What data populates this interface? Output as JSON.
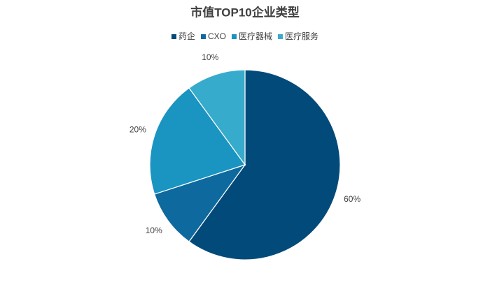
{
  "chart_data": {
    "type": "pie",
    "title": "市值TOP10企业类型",
    "categories": [
      "药企",
      "CXO",
      "医疗器械",
      "医疗服务"
    ],
    "values": [
      60,
      10,
      20,
      10
    ],
    "value_labels": [
      "60%",
      "10%",
      "20%",
      "10%"
    ],
    "colors": [
      "#024a7a",
      "#0e6a9e",
      "#1a94c0",
      "#37abcc"
    ],
    "legend": "top"
  }
}
